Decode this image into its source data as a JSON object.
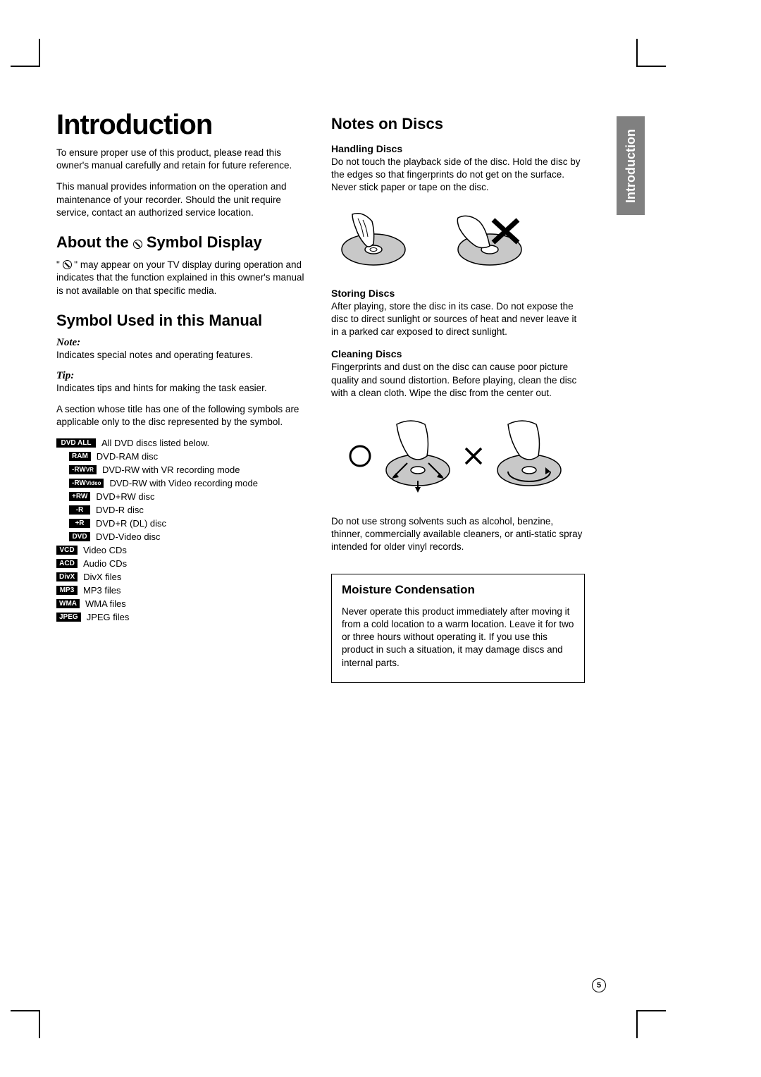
{
  "sideTab": "Introduction",
  "pageNumber": "5",
  "h1": "Introduction",
  "intro_p1": "To ensure proper use of this product, please read this owner's manual carefully and retain for future reference.",
  "intro_p2": "This manual provides information on the operation and maintenance of your recorder. Should the unit require service, contact an authorized service location.",
  "about_h2_pre": "About the ",
  "about_h2_post": " Symbol Display",
  "about_p_pre": "\" ",
  "about_p_post": " \" may appear on your TV display during operation and indicates that the function explained in this owner's manual is not available on that specific media.",
  "symused_h2": "Symbol Used in this Manual",
  "note_label": "Note:",
  "note_desc": "Indicates special notes and operating features.",
  "tip_label": "Tip:",
  "tip_desc": "Indicates tips and hints for making the task easier.",
  "section_desc": "A section whose title has one of the following symbols are applicable only to the disc represented by the symbol.",
  "symbols": [
    {
      "badge": "DVD ALL",
      "desc": "All DVD discs listed below.",
      "indent": false,
      "wide": true
    },
    {
      "badge": "RAM",
      "desc": "DVD-RAM disc",
      "indent": true
    },
    {
      "badge": "-RW",
      "sub": "VR",
      "desc": "DVD-RW with VR recording mode",
      "indent": true
    },
    {
      "badge": "-RW",
      "sub": "Video",
      "desc": "DVD-RW with Video recording mode",
      "indent": true
    },
    {
      "badge": "+RW",
      "desc": "DVD+RW disc",
      "indent": true
    },
    {
      "badge": "-R",
      "desc": "DVD-R disc",
      "indent": true
    },
    {
      "badge": "+R",
      "desc": "DVD+R (DL) disc",
      "indent": true
    },
    {
      "badge": "DVD",
      "desc": "DVD-Video disc",
      "indent": true
    },
    {
      "badge": "VCD",
      "desc": "Video CDs",
      "indent": false
    },
    {
      "badge": "ACD",
      "desc": "Audio CDs",
      "indent": false
    },
    {
      "badge": "DivX",
      "desc": "DivX files",
      "indent": false
    },
    {
      "badge": "MP3",
      "desc": "MP3 files",
      "indent": false
    },
    {
      "badge": "WMA",
      "desc": "WMA files",
      "indent": false
    },
    {
      "badge": "JPEG",
      "desc": "JPEG files",
      "indent": false
    }
  ],
  "notes_h2": "Notes on Discs",
  "handling_h3": "Handling Discs",
  "handling_p": "Do not touch the playback side of the disc. Hold the disc by the edges so that fingerprints do not get on the surface. Never stick paper or tape on the disc.",
  "storing_h3": "Storing Discs",
  "storing_p": "After playing, store the disc in its case. Do not expose the disc to direct sunlight or sources of heat and never leave it in a parked car exposed to direct sunlight.",
  "cleaning_h3": "Cleaning Discs",
  "cleaning_p": "Fingerprints and dust on the disc can cause poor picture quality and sound distortion. Before playing, clean the disc with a clean cloth. Wipe the disc from the center out.",
  "solvents_p": "Do not use strong solvents such as alcohol, benzine, thinner, commercially available cleaners, or anti-static spray intended for older vinyl records.",
  "moisture_h3": "Moisture Condensation",
  "moisture_p": "Never operate this product immediately after moving it from a cold location to a warm location. Leave it for two or three hours without operating it. If you use this product in such a situation, it may damage discs and internal parts.",
  "colors": {
    "badge_bg": "#000000",
    "badge_fg": "#ffffff",
    "tab_bg": "#808080",
    "page_bg": "#ffffff",
    "text": "#000000",
    "disc_fill": "#c8c8c8"
  }
}
